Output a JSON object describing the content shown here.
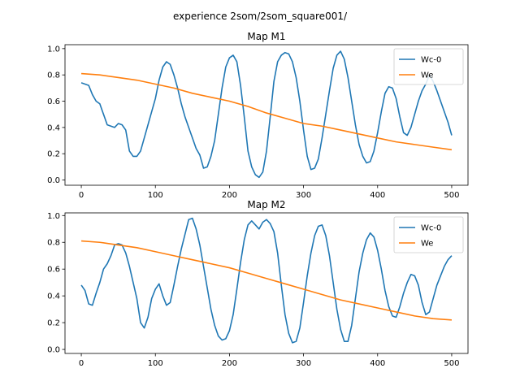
{
  "suptitle": "experience 2som/2som_square001/",
  "colors": {
    "wc": "#1f77b4",
    "we": "#ff7f0e"
  },
  "chart_data": [
    {
      "type": "line",
      "title": "Map M1",
      "xlim": [
        -22,
        522
      ],
      "ylim": [
        -0.04,
        1.03
      ],
      "xticks": [
        0,
        100,
        200,
        300,
        400,
        500
      ],
      "yticks": [
        0.0,
        0.2,
        0.4,
        0.6,
        0.8,
        1.0
      ],
      "xtick_labels": [
        "0",
        "100",
        "200",
        "300",
        "400",
        "500"
      ],
      "ytick_labels": [
        "0.0",
        "0.2",
        "0.4",
        "0.6",
        "0.8",
        "1.0"
      ],
      "legend_position": "top-right",
      "series": [
        {
          "name": "Wc-0",
          "x": [
            0,
            5,
            10,
            15,
            20,
            25,
            30,
            35,
            40,
            45,
            50,
            55,
            60,
            65,
            70,
            75,
            80,
            85,
            90,
            95,
            100,
            105,
            110,
            115,
            120,
            125,
            130,
            135,
            140,
            145,
            150,
            155,
            160,
            165,
            170,
            175,
            180,
            185,
            190,
            195,
            200,
            205,
            210,
            215,
            220,
            225,
            230,
            235,
            240,
            245,
            250,
            255,
            260,
            265,
            270,
            275,
            280,
            285,
            290,
            295,
            300,
            305,
            310,
            315,
            320,
            325,
            330,
            335,
            340,
            345,
            350,
            355,
            360,
            365,
            370,
            375,
            380,
            385,
            390,
            395,
            400,
            405,
            410,
            415,
            420,
            425,
            430,
            435,
            440,
            445,
            450,
            455,
            460,
            465,
            470,
            475,
            480,
            485,
            490,
            495,
            500
          ],
          "y": [
            0.74,
            0.73,
            0.72,
            0.65,
            0.6,
            0.58,
            0.5,
            0.42,
            0.41,
            0.4,
            0.43,
            0.42,
            0.38,
            0.22,
            0.18,
            0.18,
            0.22,
            0.32,
            0.42,
            0.52,
            0.62,
            0.76,
            0.86,
            0.9,
            0.88,
            0.8,
            0.7,
            0.58,
            0.48,
            0.4,
            0.32,
            0.24,
            0.19,
            0.09,
            0.1,
            0.18,
            0.3,
            0.5,
            0.7,
            0.86,
            0.93,
            0.95,
            0.9,
            0.72,
            0.48,
            0.22,
            0.1,
            0.04,
            0.02,
            0.06,
            0.22,
            0.48,
            0.75,
            0.9,
            0.95,
            0.97,
            0.96,
            0.9,
            0.78,
            0.6,
            0.38,
            0.18,
            0.08,
            0.09,
            0.16,
            0.32,
            0.5,
            0.68,
            0.85,
            0.95,
            0.98,
            0.92,
            0.78,
            0.6,
            0.42,
            0.27,
            0.18,
            0.13,
            0.14,
            0.22,
            0.36,
            0.52,
            0.66,
            0.71,
            0.7,
            0.62,
            0.48,
            0.36,
            0.34,
            0.4,
            0.5,
            0.6,
            0.68,
            0.73,
            0.8,
            0.75,
            0.68,
            0.6,
            0.52,
            0.44,
            0.34
          ]
        },
        {
          "name": "We",
          "x": [
            0,
            25,
            50,
            75,
            100,
            125,
            150,
            175,
            200,
            225,
            250,
            275,
            300,
            325,
            350,
            375,
            400,
            425,
            450,
            475,
            500
          ],
          "y": [
            0.81,
            0.8,
            0.78,
            0.76,
            0.73,
            0.7,
            0.66,
            0.63,
            0.6,
            0.56,
            0.51,
            0.47,
            0.43,
            0.41,
            0.38,
            0.35,
            0.32,
            0.29,
            0.27,
            0.25,
            0.23
          ]
        }
      ]
    },
    {
      "type": "line",
      "title": "Map M2",
      "xlim": [
        -22,
        522
      ],
      "ylim": [
        -0.03,
        1.02
      ],
      "xticks": [
        0,
        100,
        200,
        300,
        400,
        500
      ],
      "yticks": [
        0.0,
        0.2,
        0.4,
        0.6,
        0.8,
        1.0
      ],
      "xtick_labels": [
        "0",
        "100",
        "200",
        "300",
        "400",
        "500"
      ],
      "ytick_labels": [
        "0.0",
        "0.2",
        "0.4",
        "0.6",
        "0.8",
        "1.0"
      ],
      "legend_position": "top-right",
      "series": [
        {
          "name": "Wc-0",
          "x": [
            0,
            5,
            10,
            15,
            20,
            25,
            30,
            35,
            40,
            45,
            50,
            55,
            60,
            65,
            70,
            75,
            80,
            85,
            90,
            95,
            100,
            105,
            110,
            115,
            120,
            125,
            130,
            135,
            140,
            145,
            150,
            155,
            160,
            165,
            170,
            175,
            180,
            185,
            190,
            195,
            200,
            205,
            210,
            215,
            220,
            225,
            230,
            235,
            240,
            245,
            250,
            255,
            260,
            265,
            270,
            275,
            280,
            285,
            290,
            295,
            300,
            305,
            310,
            315,
            320,
            325,
            330,
            335,
            340,
            345,
            350,
            355,
            360,
            365,
            370,
            375,
            380,
            385,
            390,
            395,
            400,
            405,
            410,
            415,
            420,
            425,
            430,
            435,
            440,
            445,
            450,
            455,
            460,
            465,
            470,
            475,
            480,
            485,
            490,
            495,
            500
          ],
          "y": [
            0.48,
            0.44,
            0.34,
            0.33,
            0.42,
            0.5,
            0.6,
            0.64,
            0.7,
            0.78,
            0.79,
            0.78,
            0.72,
            0.62,
            0.5,
            0.38,
            0.2,
            0.16,
            0.24,
            0.38,
            0.45,
            0.49,
            0.4,
            0.33,
            0.35,
            0.48,
            0.62,
            0.75,
            0.86,
            0.97,
            0.98,
            0.9,
            0.78,
            0.62,
            0.46,
            0.3,
            0.18,
            0.1,
            0.07,
            0.08,
            0.14,
            0.26,
            0.45,
            0.65,
            0.82,
            0.93,
            0.96,
            0.93,
            0.9,
            0.95,
            0.97,
            0.94,
            0.88,
            0.72,
            0.48,
            0.26,
            0.12,
            0.05,
            0.06,
            0.16,
            0.35,
            0.55,
            0.72,
            0.85,
            0.92,
            0.93,
            0.85,
            0.7,
            0.5,
            0.3,
            0.15,
            0.06,
            0.06,
            0.18,
            0.38,
            0.58,
            0.72,
            0.82,
            0.87,
            0.84,
            0.74,
            0.6,
            0.44,
            0.32,
            0.25,
            0.24,
            0.32,
            0.42,
            0.5,
            0.56,
            0.55,
            0.48,
            0.35,
            0.26,
            0.28,
            0.38,
            0.48,
            0.55,
            0.62,
            0.67,
            0.7
          ]
        },
        {
          "name": "We",
          "x": [
            0,
            25,
            50,
            75,
            100,
            125,
            150,
            175,
            200,
            225,
            250,
            275,
            300,
            325,
            350,
            375,
            400,
            425,
            450,
            475,
            500
          ],
          "y": [
            0.81,
            0.8,
            0.78,
            0.76,
            0.73,
            0.7,
            0.67,
            0.64,
            0.61,
            0.57,
            0.53,
            0.49,
            0.45,
            0.41,
            0.37,
            0.34,
            0.31,
            0.28,
            0.25,
            0.23,
            0.22
          ]
        }
      ]
    }
  ]
}
